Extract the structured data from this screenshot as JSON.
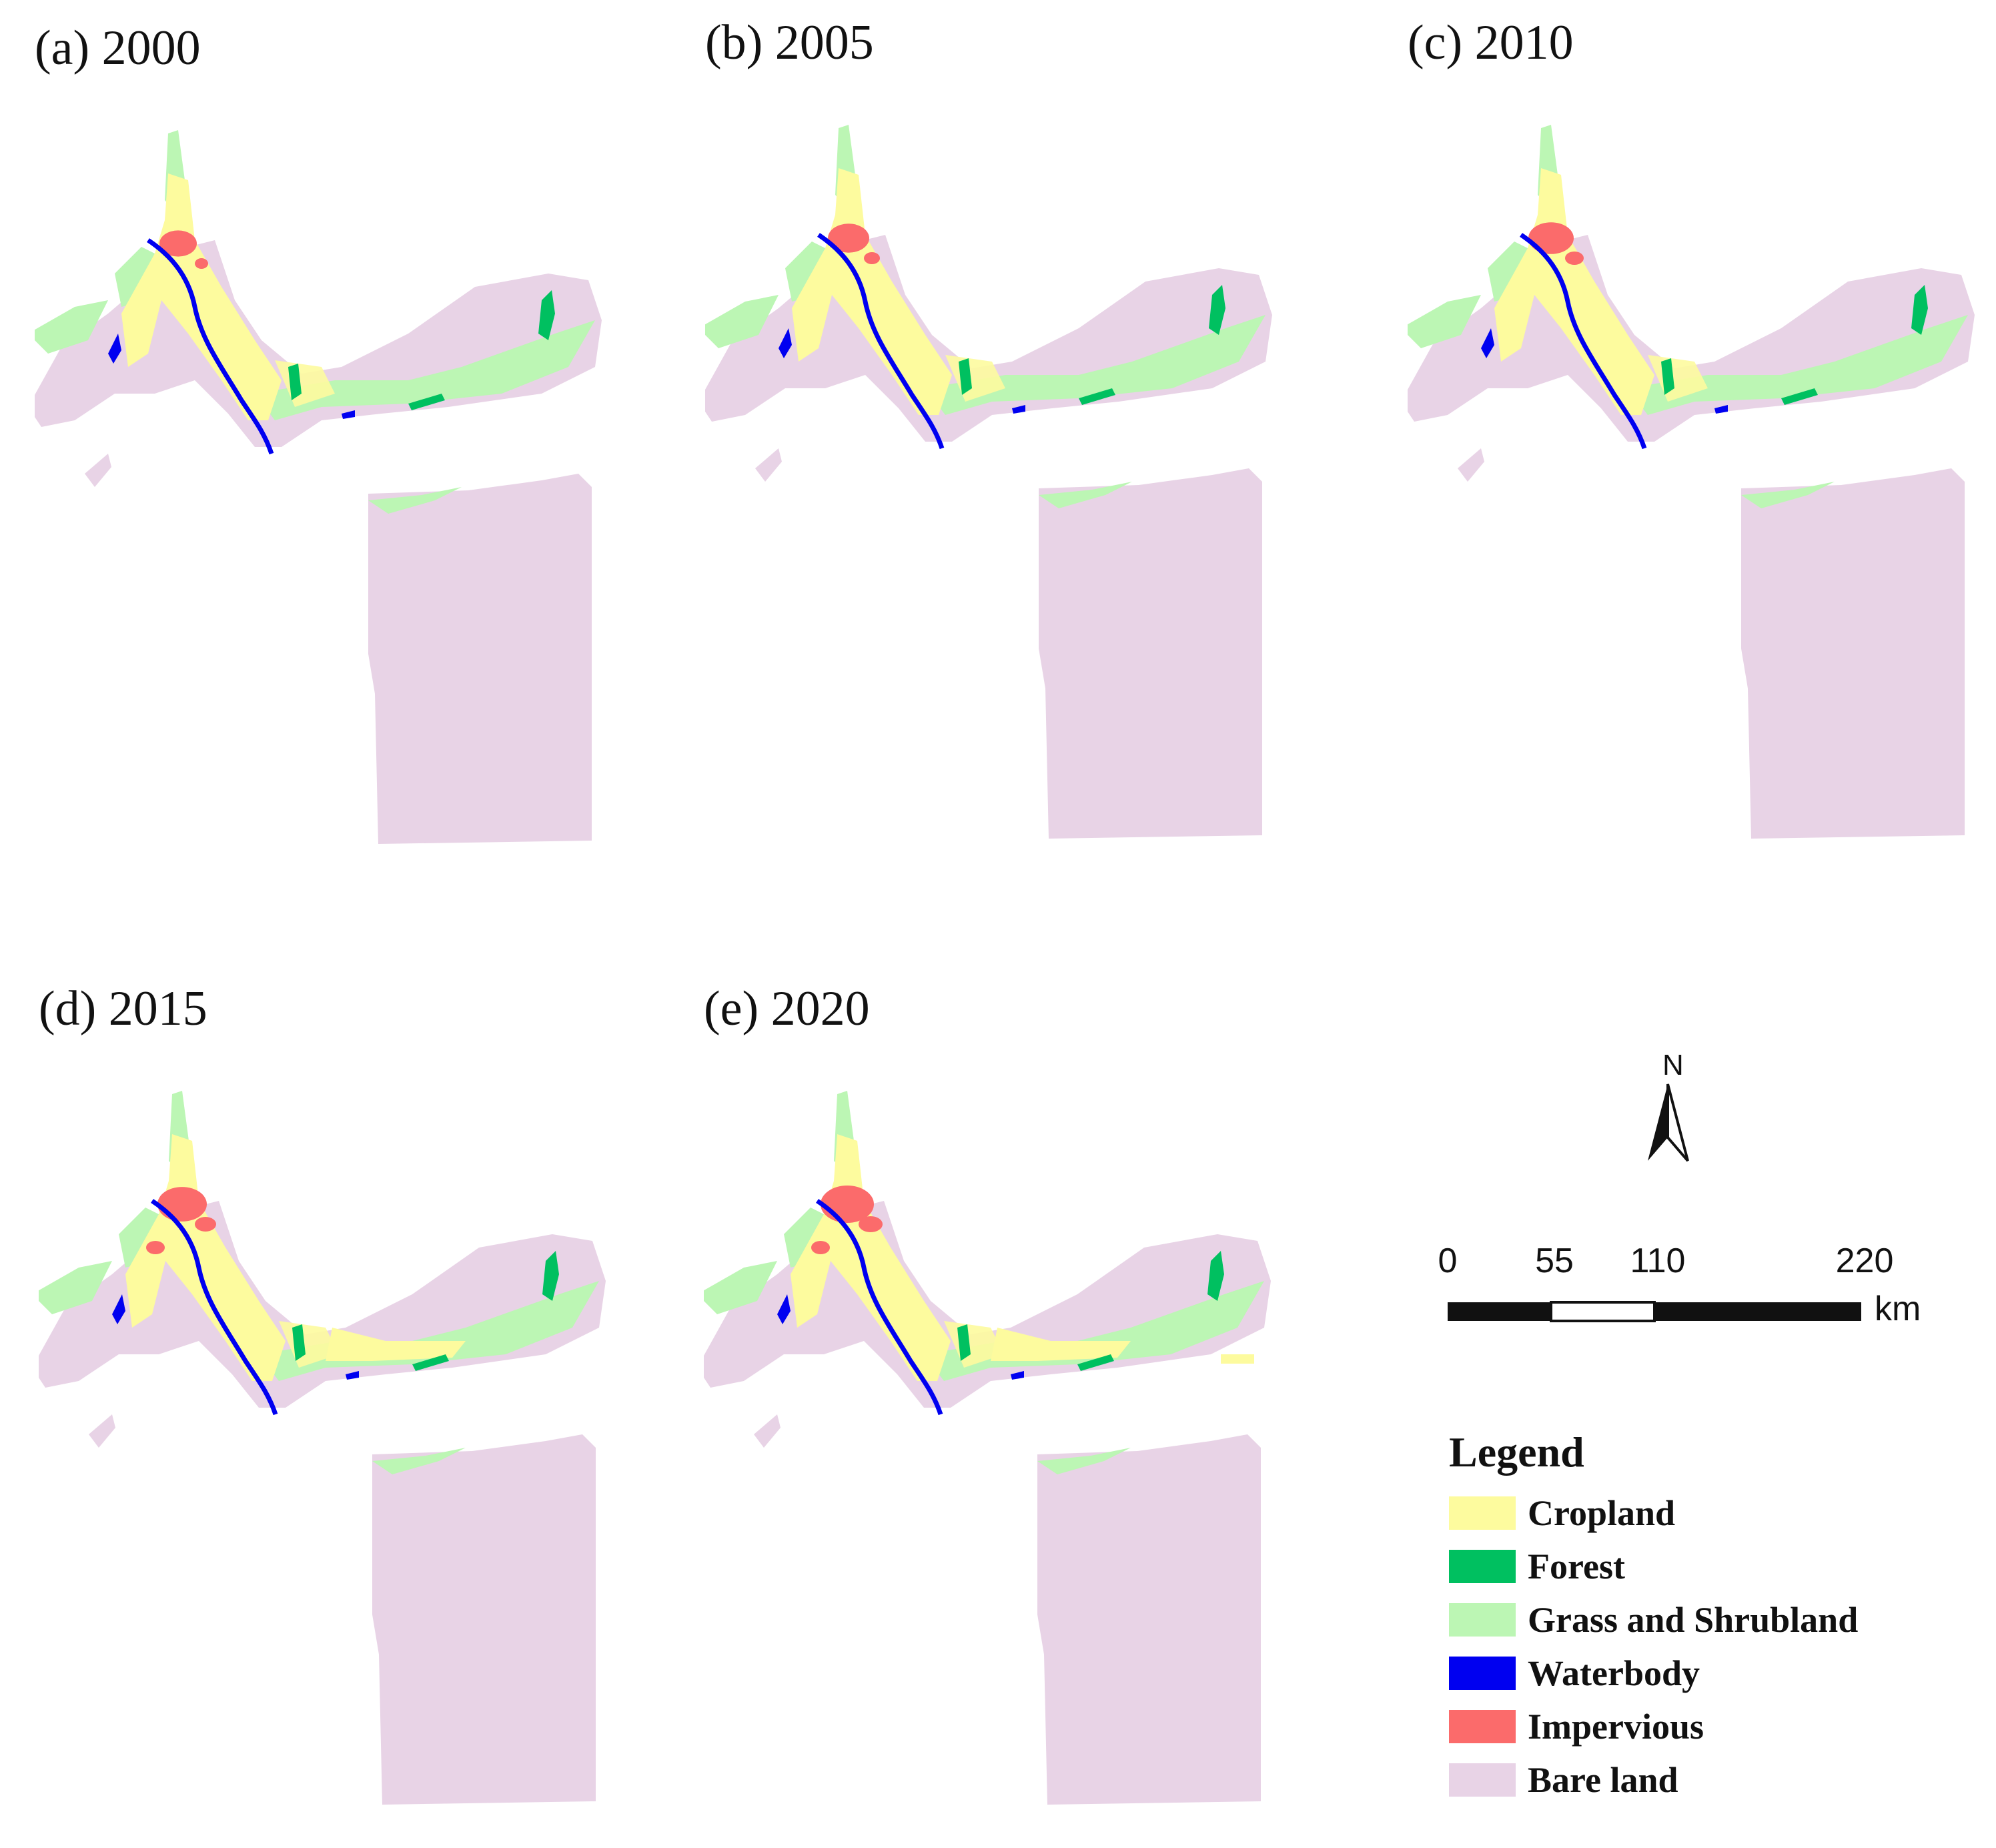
{
  "panels": [
    {
      "label": "(a) 2000"
    },
    {
      "label": "(b) 2005"
    },
    {
      "label": "(c) 2010"
    },
    {
      "label": "(d) 2015"
    },
    {
      "label": "(e) 2020"
    }
  ],
  "north_arrow": {
    "label": "N"
  },
  "scale_bar": {
    "ticks": [
      "0",
      "55",
      "110",
      "220"
    ],
    "unit": "km"
  },
  "legend": {
    "title": "Legend",
    "items": [
      {
        "label": "Cropland",
        "color": "#fdfb9e"
      },
      {
        "label": "Forest",
        "color": "#00c060"
      },
      {
        "label": "Grass and Shrubland",
        "color": "#bcf6b4"
      },
      {
        "label": "Waterbody",
        "color": "#0000f0"
      },
      {
        "label": "Impervious",
        "color": "#fb6b6b"
      },
      {
        "label": "Bare land",
        "color": "#e8d3e6"
      }
    ]
  }
}
